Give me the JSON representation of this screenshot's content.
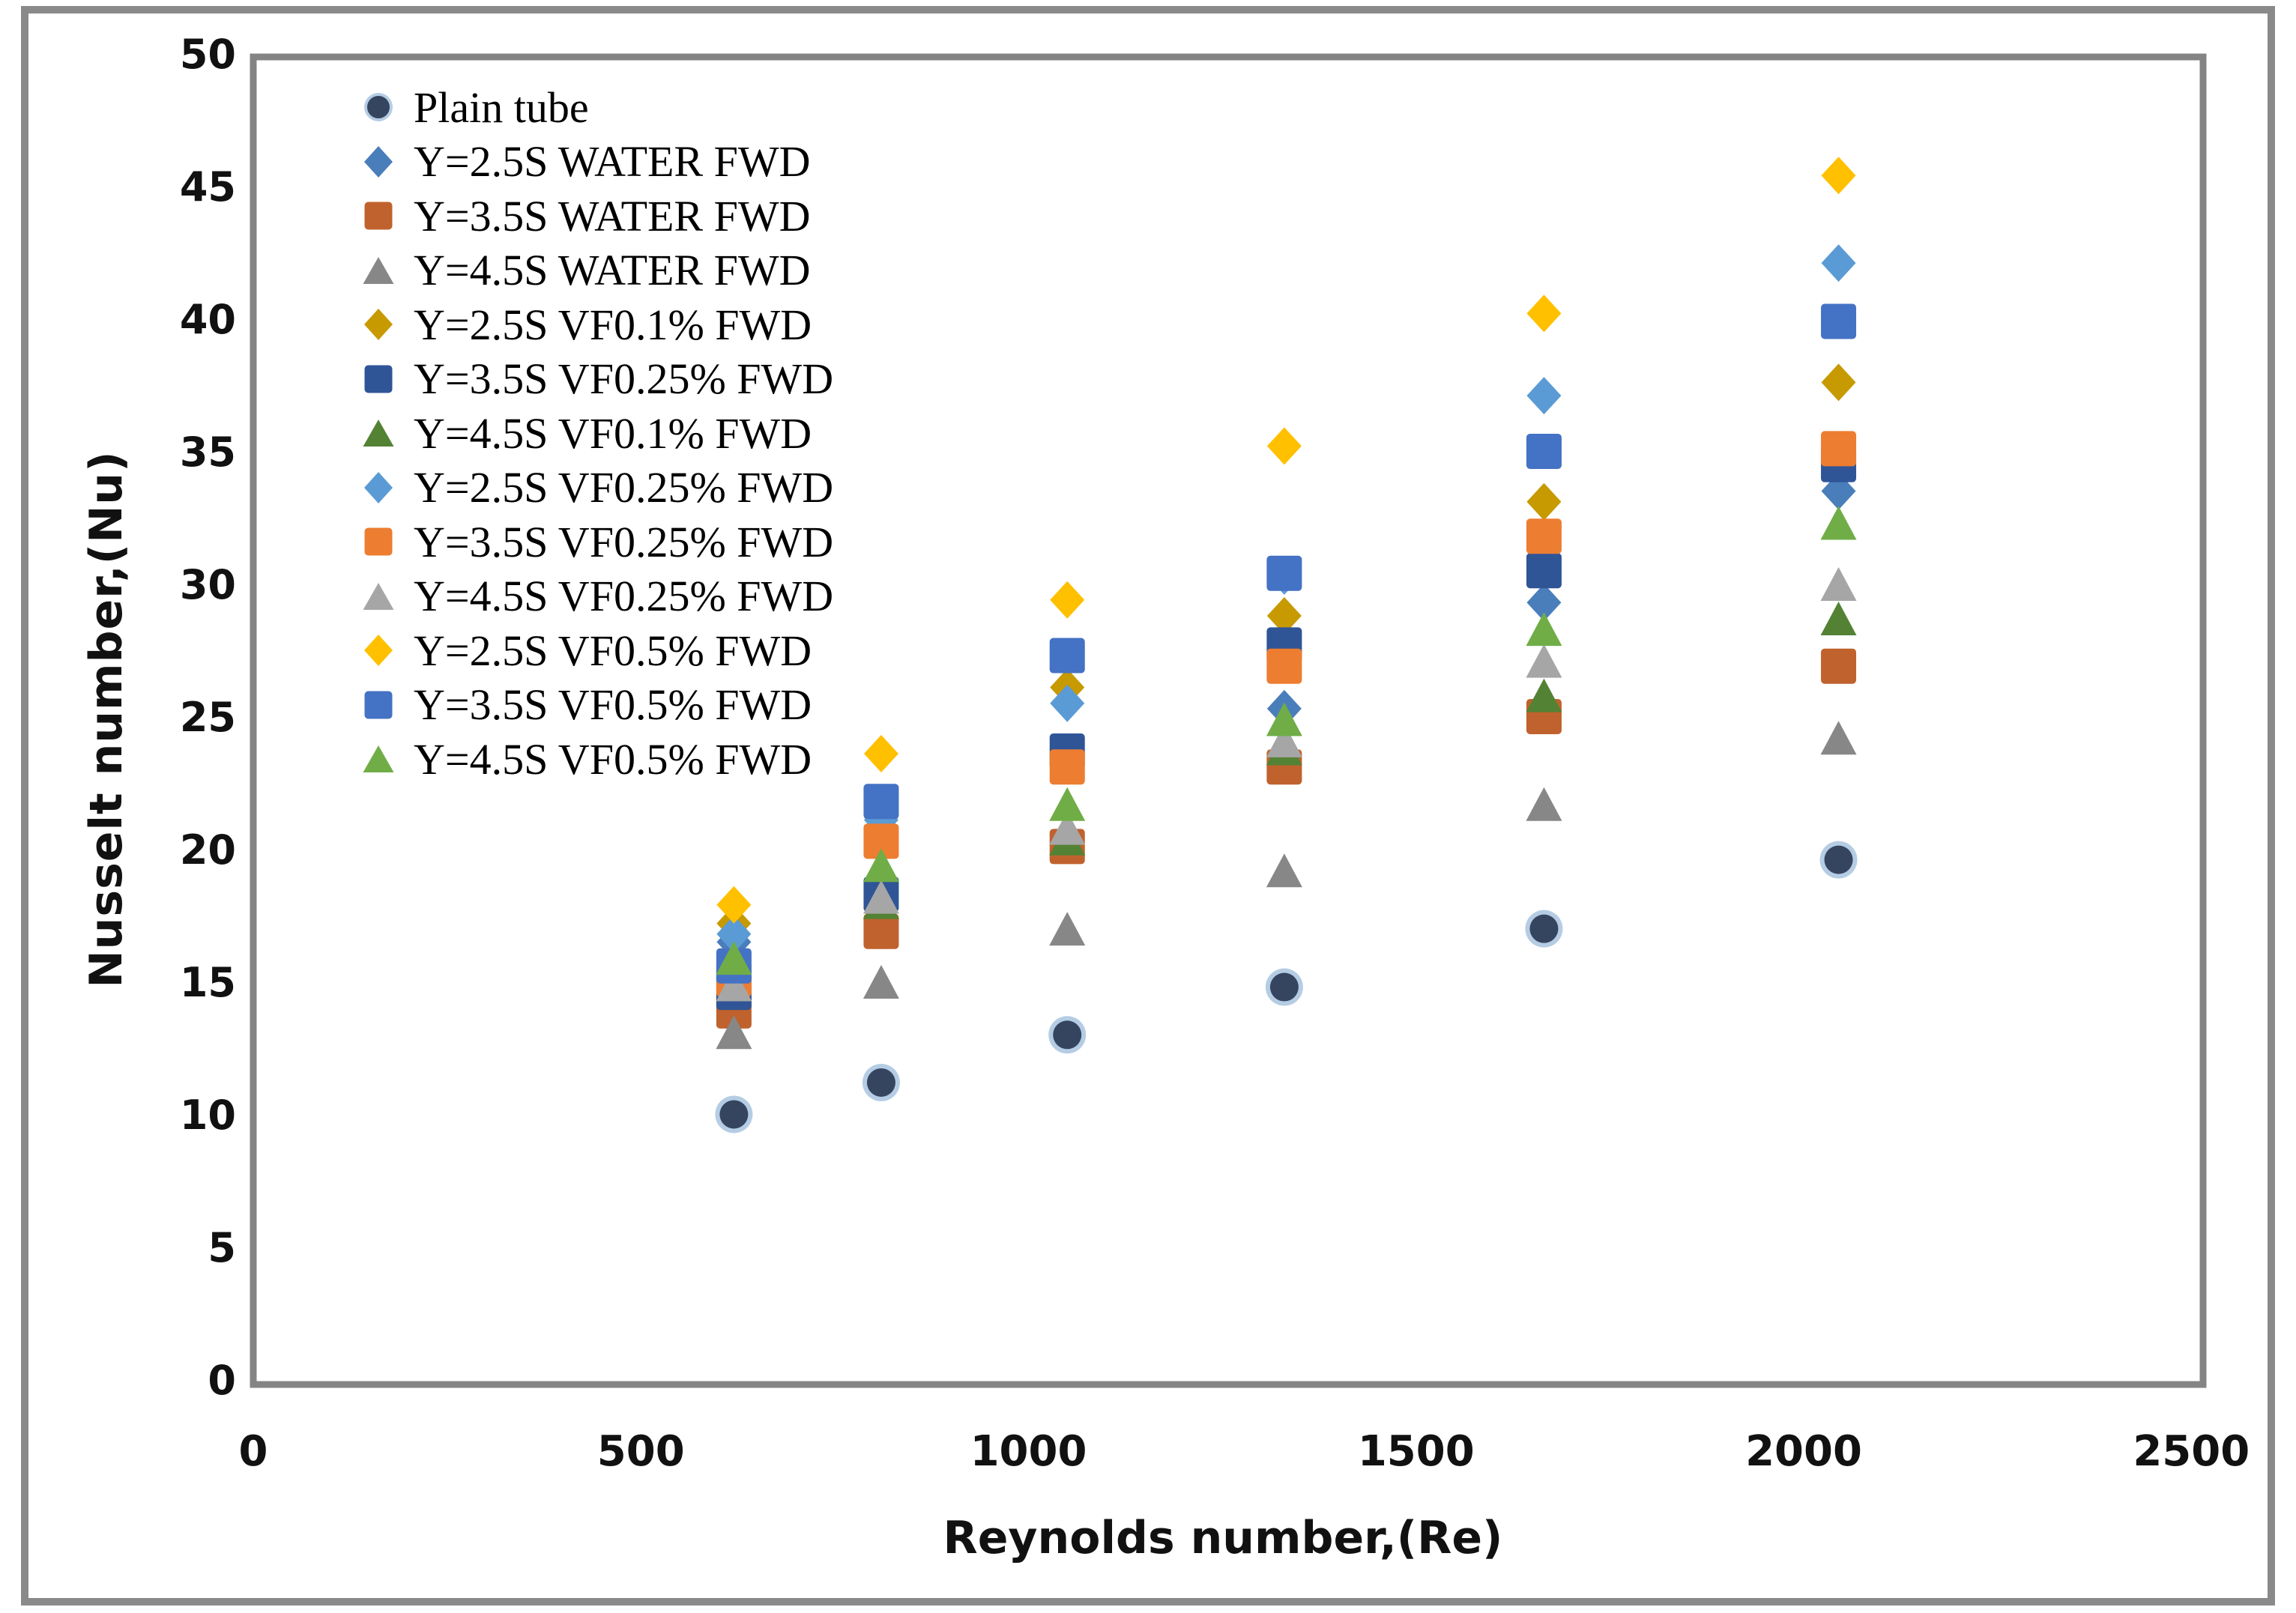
{
  "figure": {
    "background": "#ffffff",
    "outer_border_color": "#8a8a8a",
    "plot_border_color": "#848484"
  },
  "chart_data": {
    "type": "scatter",
    "title": "",
    "xlabel": "Reynolds number,(Re)",
    "ylabel": "Nusselt number,(Nu)",
    "xlim": [
      0,
      2515
    ],
    "ylim": [
      0,
      50
    ],
    "grid": false,
    "legend_position": "upper-left-inside",
    "x_ticks": [
      0,
      500,
      1000,
      1500,
      2000,
      2500
    ],
    "y_ticks": [
      0,
      5,
      10,
      15,
      20,
      25,
      30,
      35,
      40,
      45,
      50
    ],
    "x": [
      620,
      810,
      1050,
      1330,
      1665,
      2045
    ],
    "series": [
      {
        "name": "Plain tube",
        "marker": "circle",
        "color": "#36455F",
        "ring": "#B5CDE4",
        "values": [
          10.1,
          11.3,
          13.1,
          14.9,
          17.1,
          19.7
        ]
      },
      {
        "name": "Y=2.5S WATER FWD",
        "marker": "diamond",
        "color": "#4A7EBB",
        "values": [
          16.6,
          20.9,
          23.3,
          25.4,
          29.4,
          33.6
        ]
      },
      {
        "name": "Y=3.5S WATER FWD",
        "marker": "square",
        "color": "#C0622D",
        "values": [
          14.0,
          17.0,
          20.2,
          23.2,
          25.1,
          27.0
        ]
      },
      {
        "name": "Y=4.5S WATER FWD",
        "marker": "triangle",
        "color": "#878787",
        "values": [
          13.2,
          15.1,
          17.1,
          19.3,
          21.8,
          24.3
        ]
      },
      {
        "name": "Y=2.5S VF0.1% FWD",
        "marker": "diamond",
        "color": "#C69A00",
        "values": [
          17.3,
          21.3,
          26.2,
          28.9,
          33.2,
          37.7
        ]
      },
      {
        "name": "Y=3.5S VF0.25% FWD",
        "marker": "square",
        "color": "#2F5597",
        "values": [
          14.7,
          18.4,
          23.8,
          27.8,
          30.6,
          34.6
        ]
      },
      {
        "name": "Y=4.5S VF0.1% FWD",
        "marker": "triangle",
        "color": "#548235",
        "values": [
          15.9,
          18.1,
          20.5,
          23.9,
          25.9,
          28.8
        ]
      },
      {
        "name": "Y=2.5S VF0.25% FWD",
        "marker": "diamond",
        "color": "#5B9BD5",
        "values": [
          16.9,
          21.2,
          25.6,
          30.4,
          37.2,
          42.2
        ]
      },
      {
        "name": "Y=3.5S VF0.25% FWD",
        "marker": "square",
        "color": "#ED7D31",
        "values": [
          15.2,
          20.4,
          23.2,
          27.0,
          31.9,
          35.2
        ]
      },
      {
        "name": "Y=4.5S VF0.25% FWD",
        "marker": "triangle",
        "color": "#A6A6A6",
        "values": [
          15.0,
          18.3,
          20.9,
          24.2,
          27.2,
          30.1
        ]
      },
      {
        "name": "Y=2.5S VF0.5% FWD",
        "marker": "diamond",
        "color": "#FFC000",
        "values": [
          18.0,
          23.7,
          29.5,
          35.3,
          40.3,
          45.5
        ]
      },
      {
        "name": "Y=3.5S VF0.5% FWD",
        "marker": "square",
        "color": "#4472C4",
        "values": [
          15.7,
          21.9,
          27.4,
          30.5,
          35.1,
          40.0
        ]
      },
      {
        "name": "Y=4.5S VF0.5% FWD",
        "marker": "triangle",
        "color": "#70AD47",
        "values": [
          16.0,
          19.5,
          21.8,
          25.0,
          28.4,
          32.4
        ]
      }
    ]
  }
}
